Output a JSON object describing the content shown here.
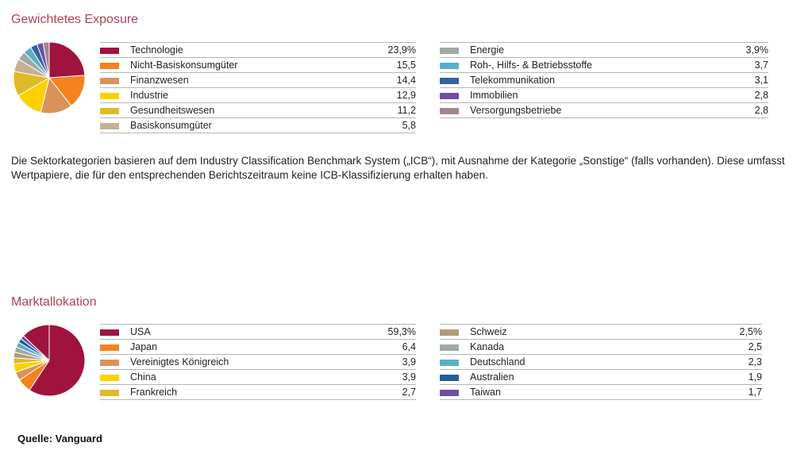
{
  "chart_data": [
    {
      "type": "pie",
      "title": "Gewichtetes Exposure",
      "slices": [
        {
          "label": "Technologie",
          "value": 23.9,
          "display": "23,9%",
          "color": "#a0133e"
        },
        {
          "label": "Nicht-Basiskonsumgüter",
          "value": 15.5,
          "display": "15,5",
          "color": "#f5821f"
        },
        {
          "label": "Finanzwesen",
          "value": 14.4,
          "display": "14,4",
          "color": "#d9935a"
        },
        {
          "label": "Industrie",
          "value": 12.9,
          "display": "12,9",
          "color": "#ffd000"
        },
        {
          "label": "Gesundheitswesen",
          "value": 11.2,
          "display": "11,2",
          "color": "#e0b92a"
        },
        {
          "label": "Basiskonsumgüter",
          "value": 5.8,
          "display": "5,8",
          "color": "#c4b190"
        },
        {
          "label": "Energie",
          "value": 3.9,
          "display": "3,9%",
          "color": "#9fa9a5"
        },
        {
          "label": "Roh-, Hilfs- & Betriebsstoffe",
          "value": 3.7,
          "display": "3,7",
          "color": "#5aafc8"
        },
        {
          "label": "Telekommunikation",
          "value": 3.1,
          "display": "3,1",
          "color": "#33649b"
        },
        {
          "label": "Immobilien",
          "value": 2.8,
          "display": "2,8",
          "color": "#6f4fa3"
        },
        {
          "label": "Versorgungsbetriebe",
          "value": 2.8,
          "display": "2,8",
          "color": "#a28492"
        }
      ],
      "remainder_color": "#f08a84"
    },
    {
      "type": "pie",
      "title": "Marktallokation",
      "slices": [
        {
          "label": "USA",
          "value": 59.3,
          "display": "59,3%",
          "color": "#a0133e"
        },
        {
          "label": "Japan",
          "value": 6.4,
          "display": "6,4",
          "color": "#f5821f"
        },
        {
          "label": "Vereinigtes Königreich",
          "value": 3.9,
          "display": "3,9",
          "color": "#d9935a"
        },
        {
          "label": "China",
          "value": 3.9,
          "display": "3,9",
          "color": "#ffd000"
        },
        {
          "label": "Frankreich",
          "value": 2.7,
          "display": "2,7",
          "color": "#e0b92a"
        },
        {
          "label": "Schweiz",
          "value": 2.5,
          "display": "2,5%",
          "color": "#b39a7a"
        },
        {
          "label": "Kanada",
          "value": 2.5,
          "display": "2,5",
          "color": "#9fa9a5"
        },
        {
          "label": "Deutschland",
          "value": 2.3,
          "display": "2,3",
          "color": "#5aafc8"
        },
        {
          "label": "Australien",
          "value": 1.9,
          "display": "1,9",
          "color": "#1f5f99"
        },
        {
          "label": "Taiwan",
          "value": 1.7,
          "display": "1,7",
          "color": "#6f4fa3"
        }
      ],
      "remainder_color": "#a0133e"
    }
  ],
  "note": "Die Sektorkategorien basieren auf dem Industry Classification Benchmark System („ICB“), mit Ausnahme der Kategorie „Sonstige“ (falls vorhanden). Diese umfasst Wertpapiere, die für den entsprechenden Berichtszeitraum keine ICB-Klassifizierung erhalten haben.",
  "source": "Quelle: Vanguard"
}
